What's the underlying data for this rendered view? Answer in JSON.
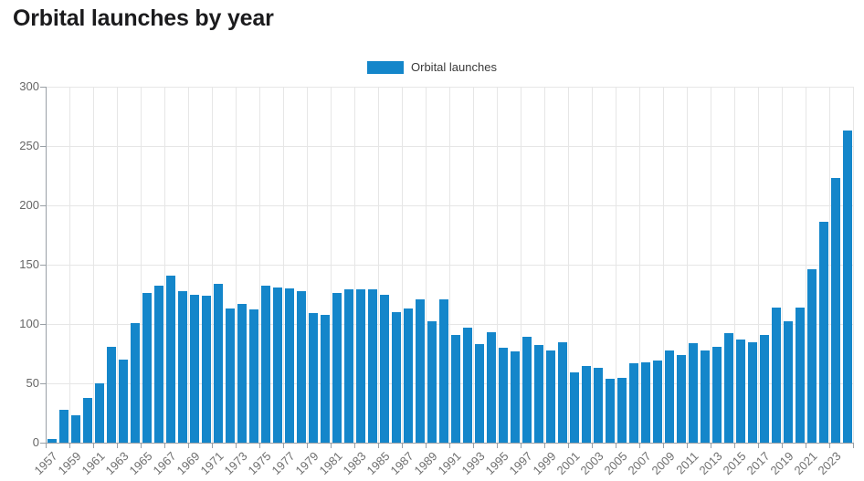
{
  "chart_data": {
    "type": "bar",
    "title": "Orbital launches by year",
    "legend": "Orbital launches",
    "legend_position": "top-center",
    "xlabel": "",
    "ylabel": "",
    "ylim": [
      0,
      300
    ],
    "y_ticks": [
      0,
      50,
      100,
      150,
      200,
      250,
      300
    ],
    "x_tick_labels": [
      "1957",
      "1959",
      "1961",
      "1963",
      "1965",
      "1967",
      "1969",
      "1971",
      "1973",
      "1975",
      "1977",
      "1979",
      "1981",
      "1983",
      "1985",
      "1987",
      "1989",
      "1991",
      "1993",
      "1995",
      "1997",
      "1999",
      "2001",
      "2003",
      "2005",
      "2007",
      "2009",
      "2011",
      "2013",
      "2015",
      "2017",
      "2019",
      "2021",
      "2023"
    ],
    "grid": true,
    "categories": [
      1957,
      1958,
      1959,
      1960,
      1961,
      1962,
      1963,
      1964,
      1965,
      1966,
      1967,
      1968,
      1969,
      1970,
      1971,
      1972,
      1973,
      1974,
      1975,
      1976,
      1977,
      1978,
      1979,
      1980,
      1981,
      1982,
      1983,
      1984,
      1985,
      1986,
      1987,
      1988,
      1989,
      1990,
      1991,
      1992,
      1993,
      1994,
      1995,
      1996,
      1997,
      1998,
      1999,
      2000,
      2001,
      2002,
      2003,
      2004,
      2005,
      2006,
      2007,
      2008,
      2009,
      2010,
      2011,
      2012,
      2013,
      2014,
      2015,
      2016,
      2017,
      2018,
      2019,
      2020,
      2021,
      2022,
      2023,
      2024
    ],
    "values": [
      3,
      28,
      23,
      38,
      50,
      81,
      70,
      101,
      126,
      132,
      141,
      128,
      125,
      124,
      134,
      113,
      117,
      112,
      132,
      131,
      130,
      128,
      109,
      108,
      126,
      129,
      129,
      129,
      125,
      110,
      113,
      121,
      102,
      121,
      91,
      97,
      83,
      93,
      80,
      77,
      89,
      82,
      78,
      85,
      59,
      65,
      63,
      54,
      55,
      67,
      68,
      69,
      78,
      74,
      84,
      78,
      81,
      92,
      87,
      85,
      91,
      114,
      102,
      114,
      146,
      186,
      223,
      263
    ]
  },
  "colors": {
    "bar": "#1486ca",
    "title_text": "#1b1b1d",
    "axis_label_text": "#6a6a6a",
    "legend_text": "#3a3a3a",
    "gridline": "#e6e6e6",
    "axis_line": "#9aa0a6"
  }
}
